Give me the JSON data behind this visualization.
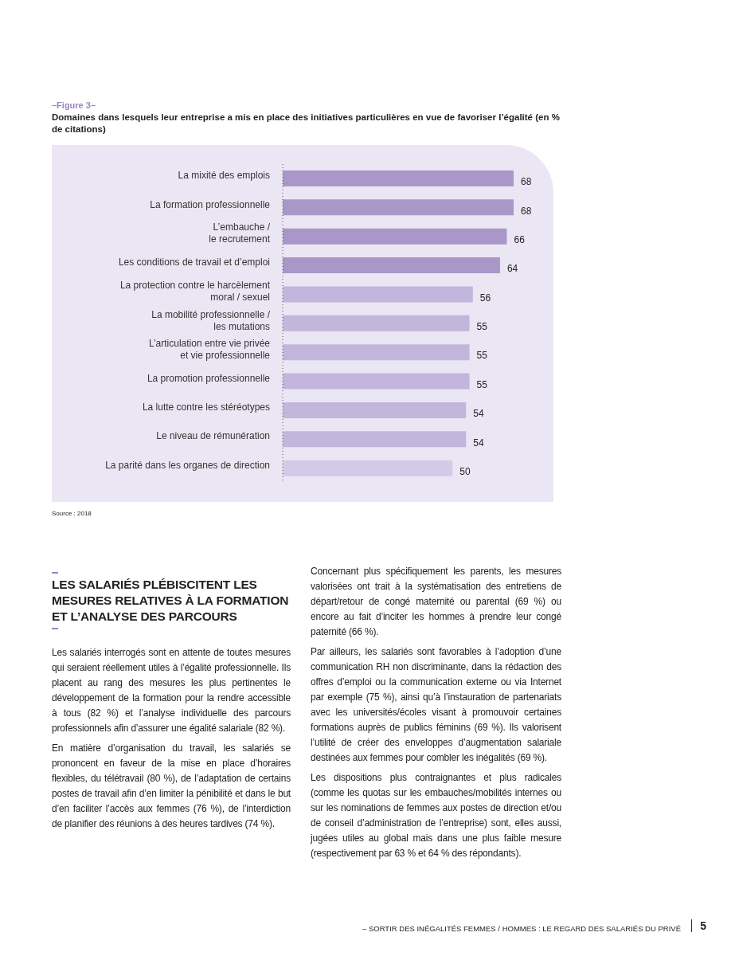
{
  "chart_data": {
    "type": "bar",
    "orientation": "horizontal",
    "title": "–Figure 3–",
    "subtitle": "Domaines dans lesquels leur entreprise a mis en place des initiatives particulières en vue de favoriser l’égalité (en % de citations)",
    "categories": [
      "La mixité des emplois",
      "La formation professionnelle",
      "L’embauche /\nle recrutement",
      "Les conditions de travail et d’emploi",
      "La protection contre le harcèlement\nmoral / sexuel",
      "La mobilité professionnelle /\nles mutations",
      "L’articulation entre vie privée\net vie professionnelle",
      "La promotion professionnelle",
      "La lutte contre les stéréotypes",
      "Le niveau de rémunération",
      "La parité dans les organes de direction"
    ],
    "values": [
      68,
      68,
      66,
      64,
      56,
      55,
      55,
      55,
      54,
      54,
      50
    ],
    "colors": [
      "#a897c8",
      "#a897c8",
      "#a897c8",
      "#a897c8",
      "#c2b6dc",
      "#c2b6dc",
      "#c2b6dc",
      "#c2b6dc",
      "#c2b6dc",
      "#c2b6dc",
      "#d3cae8"
    ],
    "data_labels": true,
    "annotations": [
      "Source : 2018",
      "LES SALARIÉS PLÉBISCITENT LES MESURES RELATIVES À LA FORMATION ET L’ANALYSE DES PARCOURS",
      "Les salariés interrogés sont en attente de toutes mesures qui seraient réellement utiles à l’égalité professionnelle. Ils placent au rang des mesures les plus pertinentes le développement de la formation pour la rendre accessible à tous (82 %) et l’analyse individuelle des parcours professionnels afin d’assurer une égalité salariale (82 %).",
      "En matière d’organisation du travail, les salariés se prononcent en faveur de la mise en place d’horaires flexibles, du télétravail (80 %), de l’adaptation de certains postes de travail afin d’en limiter la pénibilité et dans le but d’en faciliter l’accès aux femmes (76 %), de l’interdiction de planifier des réunions à des heures tardives (74 %).",
      "Concernant plus spécifiquement les parents, les mesures valorisées ont trait à la systématisation des entretiens de départ/retour de congé maternité ou parental (69 %) ou encore au fait d’inciter les hommes à prendre leur congé paternité (66 %).",
      "Par ailleurs, les salariés sont favorables à l’adoption d’une communication RH non discriminante, dans la rédaction des offres d’emploi ou la communication externe ou via Internet par exemple (75 %), ainsi qu’à l’instauration de partenariats avec les universités/écoles visant à promouvoir certaines formations auprès de publics féminins (69 %). Ils valorisent l’utilité de créer des enveloppes d’augmentation salariale destinées aux femmes pour combler les inégalités (69 %).",
      "Les dispositions plus contraignantes et plus radicales (comme les quotas sur les embauches/mobilités internes ou sur les nominations de femmes aux postes de direction et/ou de conseil d’administration de l’entreprise) sont, elles aussi, jugées utiles au global mais dans une plus faible mesure (respectivement par 63 % et 64 % des répondants).",
      "– SORTIR DES INÉGALITÉS FEMMES / HOMMES : LE REGARD DES SALARIÉS DU PRIVÉ",
      "5"
    ]
  }
}
